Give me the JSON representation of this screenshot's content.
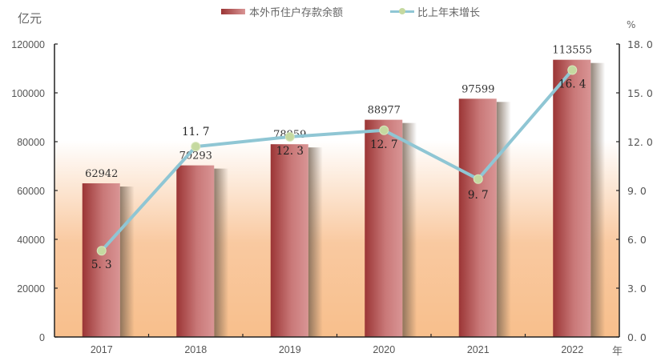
{
  "chart_data": {
    "type": "bar+line",
    "title": "",
    "categories": [
      "2017",
      "2018",
      "2019",
      "2020",
      "2021",
      "2022"
    ],
    "series": [
      {
        "name": "本外币住户存款余额",
        "type": "bar",
        "axis": "left",
        "values": [
          62942,
          70293,
          78959,
          88977,
          97599,
          113555
        ],
        "labels": [
          "62942",
          "70293",
          "78959",
          "88977",
          "97599",
          "113555"
        ]
      },
      {
        "name": "比上年末增长",
        "type": "line",
        "axis": "right",
        "values": [
          5.3,
          11.7,
          12.3,
          12.7,
          9.7,
          16.4
        ],
        "labels": [
          "5. 3",
          "11. 7",
          "12. 3",
          "12. 7",
          "9. 7",
          "16. 4"
        ]
      }
    ],
    "ylabel": "亿元",
    "y2label": "%",
    "xlabel": "年",
    "ylim": [
      0,
      120000
    ],
    "y2lim": [
      0,
      18
    ],
    "yticks": [
      "0",
      "20000",
      "40000",
      "60000",
      "80000",
      "100000",
      "120000"
    ],
    "y2ticks": [
      "0. 0",
      "3. 0",
      "6. 0",
      "9. 0",
      "12. 0",
      "15. 0",
      "18. 0"
    ],
    "grid": false,
    "legend_position": "top"
  },
  "legend": {
    "bar_label": "本外币住户存款余额",
    "line_label": "比上年末增长"
  },
  "axes": {
    "left_unit": "亿元",
    "right_unit": "%",
    "x_unit": "年"
  },
  "colors": {
    "bar_dark": "#9b3535",
    "bar_light": "#d99595",
    "line": "#8fc6d4",
    "marker": "#c5d9a0",
    "background_bottom": "#f8bf8c",
    "background_top": "#ffffff"
  }
}
